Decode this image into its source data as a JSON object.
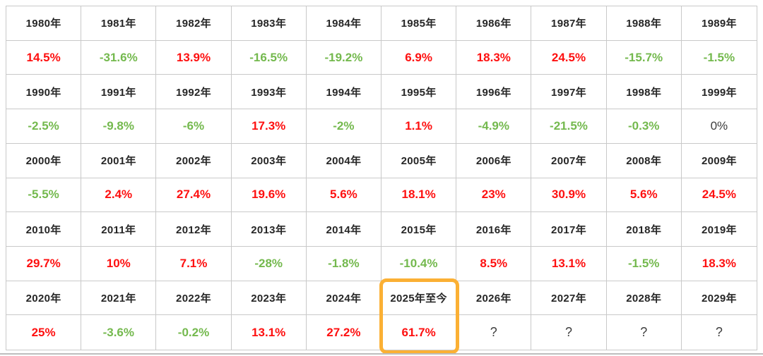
{
  "table": {
    "groups": [
      {
        "cells": [
          {
            "year": "1980年",
            "value": "14.5%",
            "tone": "pos"
          },
          {
            "year": "1981年",
            "value": "-31.6%",
            "tone": "neg"
          },
          {
            "year": "1982年",
            "value": "13.9%",
            "tone": "pos"
          },
          {
            "year": "1983年",
            "value": "-16.5%",
            "tone": "neg"
          },
          {
            "year": "1984年",
            "value": "-19.2%",
            "tone": "neg"
          },
          {
            "year": "1985年",
            "value": "6.9%",
            "tone": "pos"
          },
          {
            "year": "1986年",
            "value": "18.3%",
            "tone": "pos"
          },
          {
            "year": "1987年",
            "value": "24.5%",
            "tone": "pos"
          },
          {
            "year": "1988年",
            "value": "-15.7%",
            "tone": "neg"
          },
          {
            "year": "1989年",
            "value": "-1.5%",
            "tone": "neg"
          }
        ]
      },
      {
        "cells": [
          {
            "year": "1990年",
            "value": "-2.5%",
            "tone": "neg"
          },
          {
            "year": "1991年",
            "value": "-9.8%",
            "tone": "neg"
          },
          {
            "year": "1992年",
            "value": "-6%",
            "tone": "neg"
          },
          {
            "year": "1993年",
            "value": "17.3%",
            "tone": "pos"
          },
          {
            "year": "1994年",
            "value": "-2%",
            "tone": "neg"
          },
          {
            "year": "1995年",
            "value": "1.1%",
            "tone": "pos"
          },
          {
            "year": "1996年",
            "value": "-4.9%",
            "tone": "neg"
          },
          {
            "year": "1997年",
            "value": "-21.5%",
            "tone": "neg"
          },
          {
            "year": "1998年",
            "value": "-0.3%",
            "tone": "neg"
          },
          {
            "year": "1999年",
            "value": "0%",
            "tone": "neutral"
          }
        ]
      },
      {
        "cells": [
          {
            "year": "2000年",
            "value": "-5.5%",
            "tone": "neg"
          },
          {
            "year": "2001年",
            "value": "2.4%",
            "tone": "pos"
          },
          {
            "year": "2002年",
            "value": "27.4%",
            "tone": "pos"
          },
          {
            "year": "2003年",
            "value": "19.6%",
            "tone": "pos"
          },
          {
            "year": "2004年",
            "value": "5.6%",
            "tone": "pos"
          },
          {
            "year": "2005年",
            "value": "18.1%",
            "tone": "pos"
          },
          {
            "year": "2006年",
            "value": "23%",
            "tone": "pos"
          },
          {
            "year": "2007年",
            "value": "30.9%",
            "tone": "pos"
          },
          {
            "year": "2008年",
            "value": "5.6%",
            "tone": "pos"
          },
          {
            "year": "2009年",
            "value": "24.5%",
            "tone": "pos"
          }
        ]
      },
      {
        "cells": [
          {
            "year": "2010年",
            "value": "29.7%",
            "tone": "pos"
          },
          {
            "year": "2011年",
            "value": "10%",
            "tone": "pos"
          },
          {
            "year": "2012年",
            "value": "7.1%",
            "tone": "pos"
          },
          {
            "year": "2013年",
            "value": "-28%",
            "tone": "neg"
          },
          {
            "year": "2014年",
            "value": "-1.8%",
            "tone": "neg"
          },
          {
            "year": "2015年",
            "value": "-10.4%",
            "tone": "neg"
          },
          {
            "year": "2016年",
            "value": "8.5%",
            "tone": "pos"
          },
          {
            "year": "2017年",
            "value": "13.1%",
            "tone": "pos"
          },
          {
            "year": "2018年",
            "value": "-1.5%",
            "tone": "neg"
          },
          {
            "year": "2019年",
            "value": "18.3%",
            "tone": "pos"
          }
        ]
      },
      {
        "cells": [
          {
            "year": "2020年",
            "value": "25%",
            "tone": "pos"
          },
          {
            "year": "2021年",
            "value": "-3.6%",
            "tone": "neg"
          },
          {
            "year": "2022年",
            "value": "-0.2%",
            "tone": "neg"
          },
          {
            "year": "2023年",
            "value": "13.1%",
            "tone": "pos"
          },
          {
            "year": "2024年",
            "value": "27.2%",
            "tone": "pos"
          },
          {
            "year": "2025年至今",
            "value": "61.7%",
            "tone": "pos"
          },
          {
            "year": "2026年",
            "value": "?",
            "tone": "unknown"
          },
          {
            "year": "2027年",
            "value": "?",
            "tone": "unknown"
          },
          {
            "year": "2028年",
            "value": "?",
            "tone": "unknown"
          },
          {
            "year": "2029年",
            "value": "?",
            "tone": "unknown"
          }
        ]
      }
    ],
    "highlight": {
      "group_index": 4,
      "cell_index": 5,
      "year_label": "2025年至今",
      "value": "61.7%"
    }
  },
  "colors": {
    "positive": "#fe1010",
    "negative": "#74b94e",
    "neutral": "#3d3d3d",
    "highlight_border": "#fbb034",
    "grid_line": "#c9c9c9"
  },
  "chart_data": {
    "type": "table",
    "title": "",
    "unit": "%",
    "categories": [
      "1980年",
      "1981年",
      "1982年",
      "1983年",
      "1984年",
      "1985年",
      "1986年",
      "1987年",
      "1988年",
      "1989年",
      "1990年",
      "1991年",
      "1992年",
      "1993年",
      "1994年",
      "1995年",
      "1996年",
      "1997年",
      "1998年",
      "1999年",
      "2000年",
      "2001年",
      "2002年",
      "2003年",
      "2004年",
      "2005年",
      "2006年",
      "2007年",
      "2008年",
      "2009年",
      "2010年",
      "2011年",
      "2012年",
      "2013年",
      "2014年",
      "2015年",
      "2016年",
      "2017年",
      "2018年",
      "2019年",
      "2020年",
      "2021年",
      "2022年",
      "2023年",
      "2024年",
      "2025年至今",
      "2026年",
      "2027年",
      "2028年",
      "2029年"
    ],
    "values": [
      14.5,
      -31.6,
      13.9,
      -16.5,
      -19.2,
      6.9,
      18.3,
      24.5,
      -15.7,
      -1.5,
      -2.5,
      -9.8,
      -6,
      17.3,
      -2,
      1.1,
      -4.9,
      -21.5,
      -0.3,
      0,
      -5.5,
      2.4,
      27.4,
      19.6,
      5.6,
      18.1,
      23,
      30.9,
      5.6,
      24.5,
      29.7,
      10,
      7.1,
      -28,
      -1.8,
      -10.4,
      8.5,
      13.1,
      -1.5,
      18.3,
      25,
      -3.6,
      -0.2,
      13.1,
      27.2,
      61.7,
      null,
      null,
      null,
      null
    ],
    "layout": "10 columns x 5 decade blocks; each block has a year row above a value row",
    "highlighted_category": "2025年至今"
  }
}
